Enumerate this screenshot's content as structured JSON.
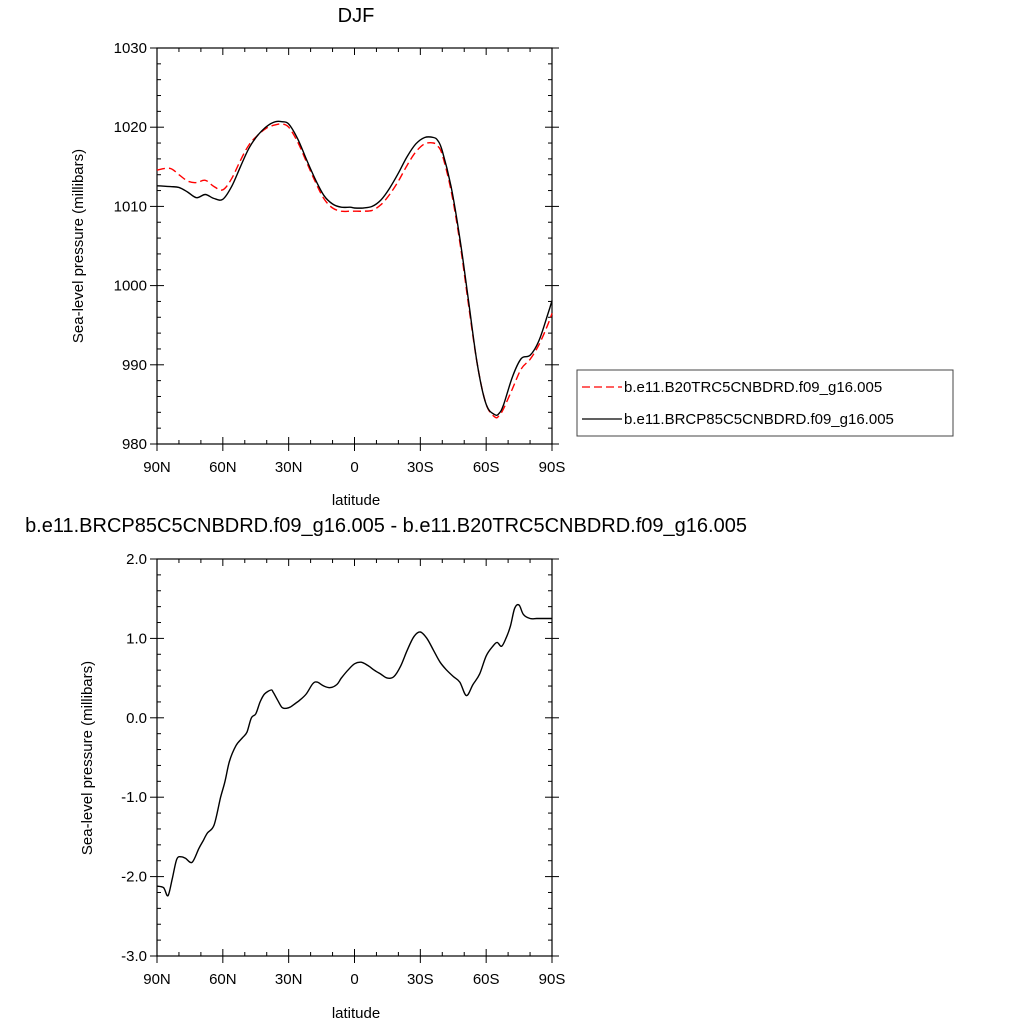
{
  "chart_data": [
    {
      "type": "line",
      "title": "DJF",
      "xlabel": "latitude",
      "ylabel": "Sea-level pressure (millibars)",
      "xlim": [
        90,
        -90
      ],
      "ylim": [
        980,
        1030
      ],
      "x_ticks": [
        90,
        60,
        30,
        0,
        -30,
        -60,
        -90
      ],
      "x_tick_labels": [
        "90N",
        "60N",
        "30N",
        "0",
        "30S",
        "60S",
        "90S"
      ],
      "y_ticks": [
        980,
        990,
        1000,
        1010,
        1020,
        1030
      ],
      "y_tick_labels": [
        "980",
        "990",
        "1000",
        "1010",
        "1020",
        "1030"
      ],
      "legend_position": "right",
      "series": [
        {
          "name": "b.e11.B20TRC5CNBDRD.f09_g16.005",
          "color": "#ff0000",
          "dash": true,
          "x": [
            90,
            84,
            80,
            76,
            72,
            68,
            64,
            60,
            56,
            52,
            48,
            44,
            40,
            36,
            33,
            30,
            26,
            22,
            18,
            14,
            10,
            6,
            2,
            0,
            -4,
            -8,
            -12,
            -16,
            -20,
            -24,
            -28,
            -32,
            -36,
            -38,
            -40,
            -44,
            -48,
            -52,
            -56,
            -60,
            -64,
            -66,
            -68,
            -72,
            -76,
            -80,
            -84,
            -88,
            -90
          ],
          "y": [
            1014.6,
            1014.8,
            1014.0,
            1013.2,
            1013.0,
            1013.3,
            1012.5,
            1012.1,
            1013.5,
            1015.8,
            1017.8,
            1019.0,
            1019.9,
            1020.3,
            1020.4,
            1020.0,
            1018.2,
            1015.7,
            1013.2,
            1011.0,
            1009.8,
            1009.4,
            1009.4,
            1009.4,
            1009.4,
            1009.5,
            1010.2,
            1011.5,
            1013.2,
            1015.2,
            1016.9,
            1017.9,
            1018.0,
            1017.6,
            1016.5,
            1012.0,
            1005.5,
            997.5,
            990.0,
            985.0,
            983.4,
            983.6,
            984.5,
            987.0,
            989.5,
            990.7,
            992.5,
            995.0,
            996.5
          ]
        },
        {
          "name": "b.e11.BRCP85C5CNBDRD.f09_g16.005",
          "color": "#000000",
          "dash": false,
          "x": [
            90,
            84,
            80,
            76,
            72,
            68,
            64,
            60,
            56,
            52,
            48,
            44,
            40,
            36,
            33,
            30,
            26,
            22,
            18,
            14,
            10,
            6,
            2,
            0,
            -4,
            -8,
            -12,
            -16,
            -20,
            -24,
            -28,
            -32,
            -36,
            -38,
            -40,
            -44,
            -48,
            -52,
            -56,
            -60,
            -64,
            -66,
            -68,
            -72,
            -76,
            -80,
            -84,
            -88,
            -90
          ],
          "y": [
            1012.6,
            1012.5,
            1012.4,
            1011.8,
            1011.1,
            1011.5,
            1011.0,
            1010.9,
            1012.5,
            1015.0,
            1017.4,
            1019.0,
            1020.1,
            1020.7,
            1020.7,
            1020.4,
            1018.6,
            1016.0,
            1013.5,
            1011.4,
            1010.3,
            1009.9,
            1009.9,
            1009.8,
            1009.8,
            1010.0,
            1010.8,
            1012.3,
            1014.2,
            1016.3,
            1017.9,
            1018.7,
            1018.7,
            1018.3,
            1017.0,
            1012.5,
            1006.0,
            998.0,
            990.0,
            985.0,
            983.7,
            983.9,
            985.0,
            988.5,
            990.8,
            991.2,
            993.0,
            996.3,
            998.1
          ]
        }
      ]
    },
    {
      "type": "line",
      "title": "b.e11.BRCP85C5CNBDRD.f09_g16.005 - b.e11.B20TRC5CNBDRD.f09_g16.005",
      "xlabel": "latitude",
      "ylabel": "Sea-level pressure (millibars)",
      "xlim": [
        90,
        -90
      ],
      "ylim": [
        -3.0,
        2.0
      ],
      "x_ticks": [
        90,
        60,
        30,
        0,
        -30,
        -60,
        -90
      ],
      "x_tick_labels": [
        "90N",
        "60N",
        "30N",
        "0",
        "30S",
        "60S",
        "90S"
      ],
      "y_ticks": [
        -3.0,
        -2.0,
        -1.0,
        0.0,
        1.0,
        2.0
      ],
      "y_tick_labels": [
        "-3.0",
        "-2.0",
        "-1.0",
        "0.0",
        "1.0",
        "2.0"
      ],
      "series": [
        {
          "color": "#000000",
          "dash": false,
          "x": [
            90,
            87,
            85,
            83,
            81,
            79,
            77,
            74,
            71,
            69,
            67,
            64,
            61,
            59,
            57,
            54,
            51,
            49,
            47,
            45,
            43,
            41,
            38,
            37,
            35,
            33,
            31,
            29,
            27,
            25,
            22,
            19,
            17,
            14,
            11,
            8,
            6,
            3,
            0,
            -3,
            -6,
            -9,
            -12,
            -15,
            -18,
            -21,
            -24,
            -27,
            -30,
            -33,
            -36,
            -39,
            -42,
            -45,
            -48,
            -51,
            -54,
            -57,
            -60,
            -63,
            -65,
            -67,
            -69,
            -71,
            -73,
            -75,
            -77,
            -80,
            -83,
            -86,
            -88,
            -89,
            -90
          ],
          "y": [
            -2.12,
            -2.14,
            -2.24,
            -2.02,
            -1.78,
            -1.75,
            -1.77,
            -1.82,
            -1.65,
            -1.55,
            -1.45,
            -1.35,
            -1.0,
            -0.8,
            -0.55,
            -0.35,
            -0.25,
            -0.18,
            0.0,
            0.05,
            0.2,
            0.3,
            0.35,
            0.32,
            0.22,
            0.13,
            0.12,
            0.14,
            0.18,
            0.22,
            0.3,
            0.43,
            0.45,
            0.4,
            0.38,
            0.42,
            0.5,
            0.6,
            0.68,
            0.7,
            0.66,
            0.6,
            0.55,
            0.5,
            0.52,
            0.65,
            0.85,
            1.02,
            1.08,
            1.0,
            0.85,
            0.7,
            0.6,
            0.52,
            0.45,
            0.28,
            0.42,
            0.55,
            0.78,
            0.9,
            0.95,
            0.9,
            1.0,
            1.15,
            1.38,
            1.42,
            1.3,
            1.25,
            1.25,
            1.25,
            1.25,
            1.25,
            1.25
          ]
        }
      ]
    }
  ]
}
